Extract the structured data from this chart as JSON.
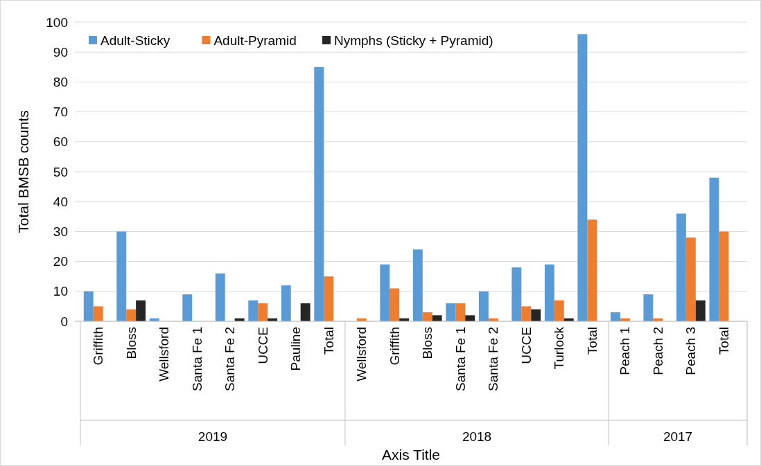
{
  "chart_data": {
    "type": "bar",
    "xlabel": "Axis Title",
    "ylabel": "Total BMSB counts",
    "categories": [
      "Griffith",
      "Bloss",
      "Wellsford",
      "Santa Fe 1",
      "Santa Fe 2",
      "UCCE",
      "Pauline",
      "Total",
      "Wellsford",
      "Griffith",
      "Bloss",
      "Santa Fe 1",
      "Santa Fe 2",
      "UCCE",
      "Turlock",
      "Total",
      "Peach 1",
      "Peach 2",
      "Peach 3",
      "Total"
    ],
    "series": [
      {
        "name": "Adult-Sticky",
        "color": "#5b9bd5",
        "values": [
          10,
          30,
          1,
          9,
          16,
          7,
          12,
          85,
          0,
          19,
          24,
          6,
          10,
          18,
          19,
          96,
          3,
          9,
          36,
          48
        ]
      },
      {
        "name": "Adult-Pyramid",
        "color": "#ed7d31",
        "values": [
          5,
          4,
          0,
          0,
          0,
          6,
          0,
          15,
          1,
          11,
          3,
          6,
          1,
          5,
          7,
          34,
          1,
          1,
          28,
          30
        ]
      },
      {
        "name": "Nymphs (Sticky + Pyramid)",
        "color": "#262626",
        "values": [
          0,
          7,
          0,
          0,
          1,
          1,
          6,
          0,
          0,
          1,
          2,
          2,
          0,
          4,
          1,
          0,
          0,
          0,
          7,
          0
        ]
      }
    ],
    "annotations": [
      "2019",
      "2018",
      "2017"
    ],
    "ylim": [
      0,
      100
    ],
    "yticks": [
      0,
      10,
      20,
      30,
      40,
      50,
      60,
      70,
      80,
      90,
      100
    ],
    "grid": "y",
    "legend": "top left"
  }
}
